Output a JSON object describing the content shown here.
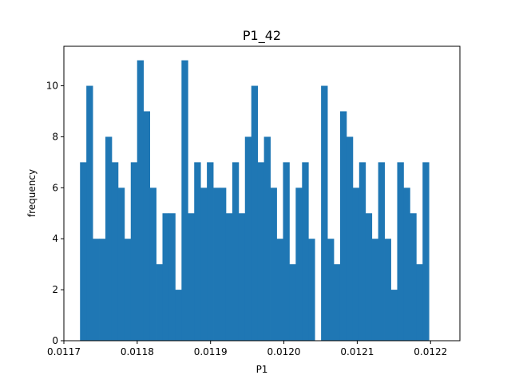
{
  "chart_data": {
    "type": "bar",
    "title": "P1_42",
    "xlabel": "P1",
    "ylabel": "frequency",
    "xlim": [
      0.0117,
      0.01224
    ],
    "ylim": [
      0,
      11.55
    ],
    "xticks": [
      0.0117,
      0.0118,
      0.0119,
      0.012,
      0.0121,
      0.0122
    ],
    "xtick_labels": [
      "0.0117",
      "0.0118",
      "0.0119",
      "0.0120",
      "0.0121",
      "0.0122"
    ],
    "yticks": [
      0,
      2,
      4,
      6,
      8,
      10
    ],
    "ytick_labels": [
      "0",
      "2",
      "4",
      "6",
      "8",
      "10"
    ],
    "bin_start": 0.011722,
    "bin_width": 8.65e-06,
    "values": [
      7,
      10,
      4,
      4,
      8,
      7,
      6,
      4,
      7,
      11,
      9,
      6,
      3,
      5,
      5,
      2,
      11,
      5,
      7,
      6,
      7,
      6,
      6,
      5,
      7,
      5,
      8,
      10,
      7,
      8,
      6,
      4,
      7,
      3,
      6,
      7,
      4,
      0,
      10,
      4,
      3,
      9,
      8,
      6,
      7,
      5,
      4,
      7,
      4,
      2,
      7,
      6,
      5,
      3,
      7
    ],
    "color": "#1f77b4",
    "grid": false
  }
}
